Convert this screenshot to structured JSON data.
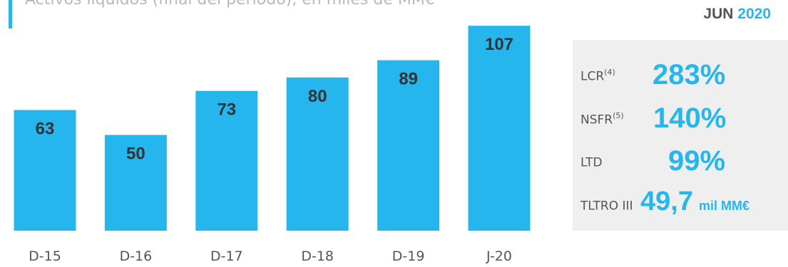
{
  "subtitle": "Activos líquidos (final del periodo), en miles de MM€",
  "header": {
    "month": "JUN",
    "year": "2020"
  },
  "colors": {
    "accent": "#26b6ee",
    "panel": "#efefef",
    "text": "#555555"
  },
  "kpis": [
    {
      "label": "LCR",
      "sup": "(4)",
      "value": "283%",
      "unit": ""
    },
    {
      "label": "NSFR",
      "sup": "(5)",
      "value": "140%",
      "unit": ""
    },
    {
      "label": "LTD",
      "sup": "",
      "value": "99%",
      "unit": ""
    },
    {
      "label": "TLTRO III",
      "sup": "",
      "value": "49,7",
      "unit": "mil MM€"
    }
  ],
  "chart_data": {
    "type": "bar",
    "categories": [
      "D-15",
      "D-16",
      "D-17",
      "D-18",
      "D-19",
      "J-20"
    ],
    "values": [
      63,
      50,
      73,
      80,
      89,
      107
    ],
    "color": "#26b6ee",
    "grid": false,
    "legend": "none"
  }
}
